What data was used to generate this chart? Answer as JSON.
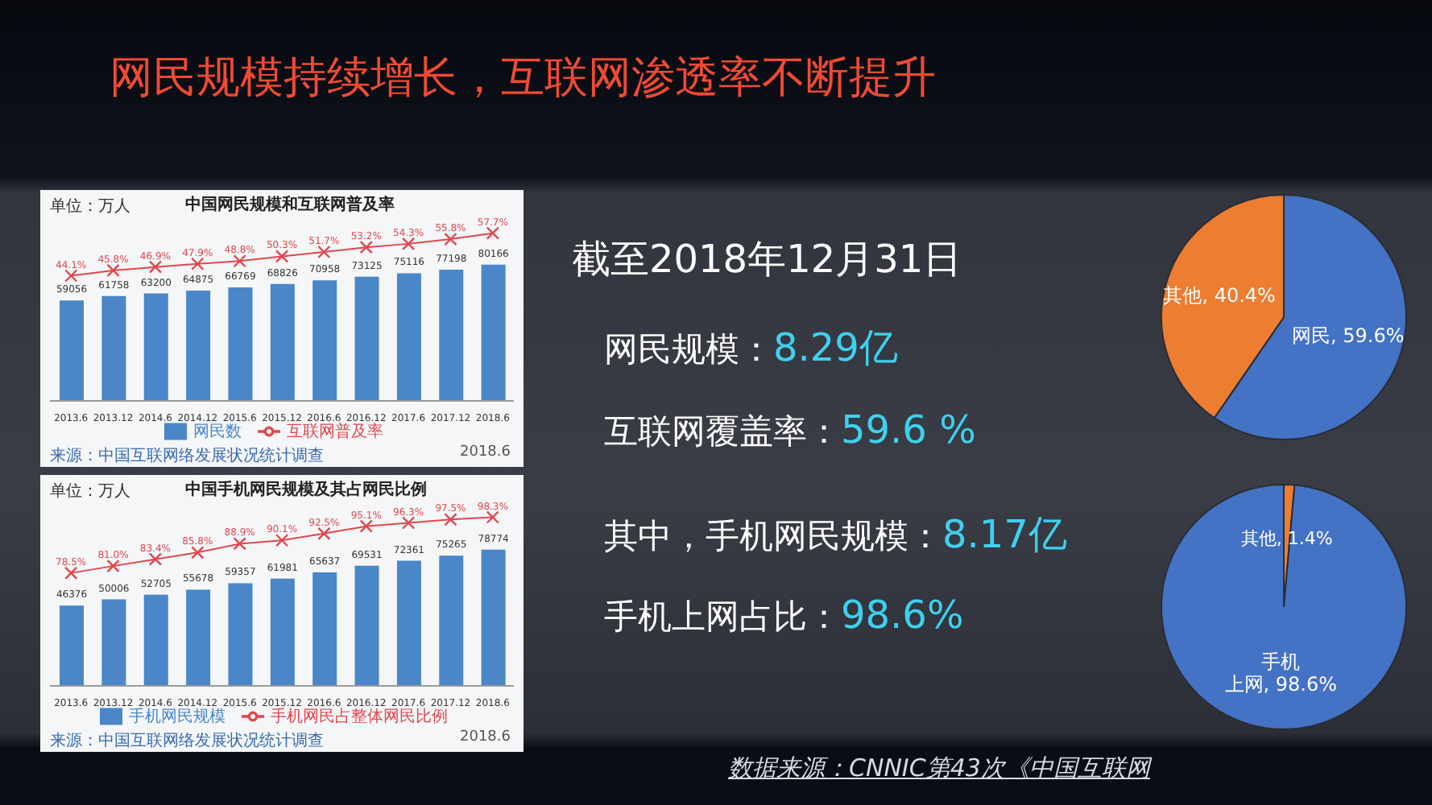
{
  "chart_data": [
    {
      "type": "other",
      "title": "网民规模持续增长，互联网渗透率不断提升",
      "subtitle": "截至2018年12月31日",
      "annotations": [
        "网民规模：8.29亿",
        "互联网覆盖率：59.6 %",
        "其中，手机网民规模：8.17亿",
        "手机上网占比：98.6%",
        "数据来源：CNNIC第43次《中国互联网"
      ]
    },
    {
      "type": "bar",
      "title": "中国网民规模和互联网普及率",
      "categories": [
        "2013.6",
        "2013.12",
        "2014.6",
        "2014.12",
        "2015.6",
        "2015.12",
        "2016.6",
        "2016.12",
        "2017.6",
        "2017.12",
        "2018.6"
      ],
      "series": [
        {
          "name": "网民数",
          "type": "bar",
          "color": "#4a86c8",
          "values": [
            59056,
            61758,
            63200,
            64875,
            66769,
            68826,
            70958,
            73125,
            75116,
            77198,
            80166
          ],
          "value_labels": [
            "59056",
            "61758",
            "63200",
            "64875",
            "66769",
            "68826",
            "70958",
            "73125",
            "75116",
            "77198",
            "80166"
          ]
        },
        {
          "name": "互联网普及率",
          "type": "line",
          "axis": "y2",
          "color": "#e0474c",
          "values": [
            44.1,
            45.8,
            46.9,
            47.9,
            48.8,
            50.3,
            51.7,
            53.2,
            54.3,
            55.8,
            57.7
          ],
          "value_labels": [
            "44.1%",
            "45.8%",
            "46.9%",
            "47.9%",
            "48.8%",
            "50.3%",
            "51.7%",
            "53.2%",
            "54.3%",
            "55.8%",
            "57.7%"
          ]
        }
      ],
      "marker": "cross",
      "legend": "bottom",
      "annotations": [
        "单位：万人",
        "来源：中国互联网络发展状况统计调查",
        "2018.6"
      ]
    },
    {
      "type": "bar",
      "title": "中国手机网民规模及其占网民比例",
      "categories": [
        "2013.6",
        "2013.12",
        "2014.6",
        "2014.12",
        "2015.6",
        "2015.12",
        "2016.6",
        "2016.12",
        "2017.6",
        "2017.12",
        "2018.6"
      ],
      "series": [
        {
          "name": "手机网民规模",
          "type": "bar",
          "color": "#4a86c8",
          "values": [
            46376,
            50006,
            52705,
            55678,
            59357,
            61981,
            65637,
            69531,
            72361,
            75265,
            78774
          ],
          "value_labels": [
            "46376",
            "50006",
            "52705",
            "55678",
            "59357",
            "61981",
            "65637",
            "69531",
            "72361",
            "75265",
            "78774"
          ]
        },
        {
          "name": "手机网民占整体网民比例",
          "type": "line",
          "axis": "y2",
          "color": "#e0474c",
          "values": [
            78.5,
            81.0,
            83.4,
            85.8,
            88.9,
            90.1,
            92.5,
            95.1,
            96.3,
            97.5,
            98.3
          ],
          "value_labels": [
            "78.5%",
            "81.0%",
            "83.4%",
            "85.8%",
            "88.9%",
            "90.1%",
            "92.5%",
            "95.1%",
            "96.3%",
            "97.5%",
            "98.3%"
          ]
        }
      ],
      "marker": "cross",
      "legend": "bottom",
      "annotations": [
        "单位：万人",
        "来源：中国互联网络发展状况统计调查",
        "2018.6"
      ]
    },
    {
      "type": "pie",
      "categories": [
        "网民",
        "其他"
      ],
      "values": [
        59.6,
        40.4
      ],
      "colors": [
        "#4472c4",
        "#ed7d31"
      ],
      "value_labels": [
        "59.6%",
        "40.4%"
      ]
    },
    {
      "type": "pie",
      "categories": [
        "其他",
        "手机上网"
      ],
      "values": [
        1.4,
        98.6
      ],
      "colors": [
        "#ed7d31",
        "#4472c4"
      ],
      "value_labels": [
        "1.4%",
        "98.6%"
      ]
    }
  ]
}
